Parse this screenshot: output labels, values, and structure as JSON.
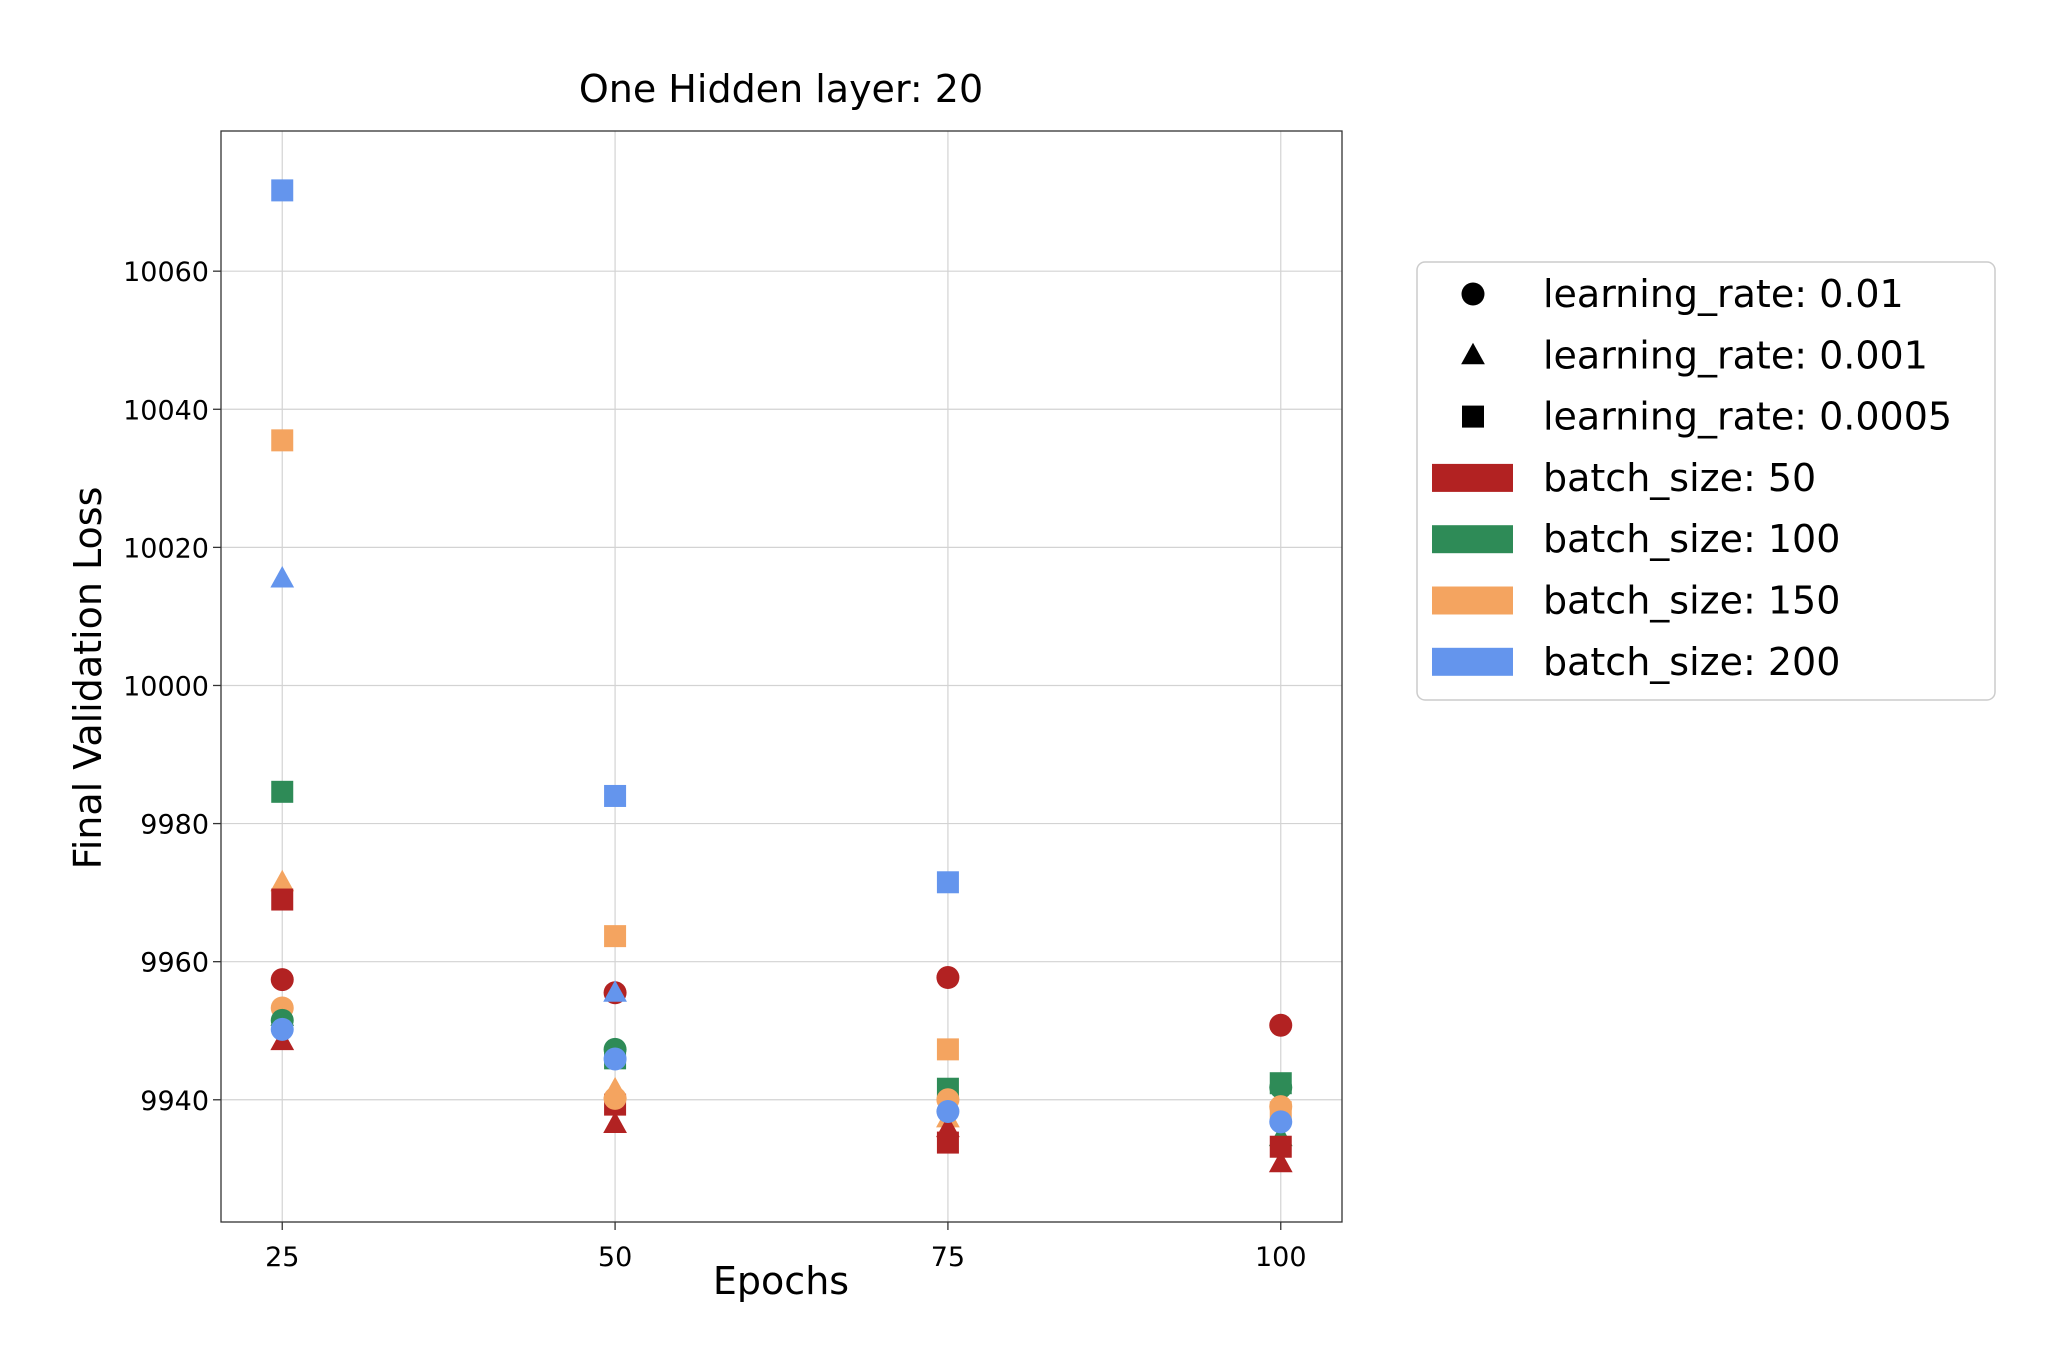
{
  "chart_data": {
    "type": "scatter",
    "title": "One Hidden layer: 20",
    "xlabel": "Epochs",
    "ylabel": "Final Validation Loss",
    "x_ticks": [
      25,
      50,
      75,
      100
    ],
    "y_ticks": [
      9940,
      9960,
      9980,
      10000,
      10020,
      10040,
      10060
    ],
    "xlim": [
      20.4,
      104.6
    ],
    "ylim": [
      9922.3,
      10080.3
    ],
    "grid": true,
    "legend_position": "outside-right",
    "colors": {
      "batch_size: 50": "#b22222",
      "batch_size: 100": "#2e8b57",
      "batch_size: 150": "#f4a460",
      "batch_size: 200": "#6495ed"
    },
    "legend": [
      {
        "label": "learning_rate: 0.01",
        "marker": "circle",
        "color": "#000000"
      },
      {
        "label": "learning_rate: 0.001",
        "marker": "triangle",
        "color": "#000000"
      },
      {
        "label": "learning_rate: 0.0005",
        "marker": "square",
        "color": "#000000"
      },
      {
        "label": "batch_size: 50",
        "marker": "patch",
        "color": "#b22222"
      },
      {
        "label": "batch_size: 100",
        "marker": "patch",
        "color": "#2e8b57"
      },
      {
        "label": "batch_size: 150",
        "marker": "patch",
        "color": "#f4a460"
      },
      {
        "label": "batch_size: 200",
        "marker": "patch",
        "color": "#6495ed"
      }
    ],
    "points": [
      {
        "x": 25,
        "y": 10071.7,
        "marker": "square",
        "batch_size": 200,
        "learning_rate": 0.0005
      },
      {
        "x": 25,
        "y": 10035.5,
        "marker": "square",
        "batch_size": 150,
        "learning_rate": 0.0005
      },
      {
        "x": 25,
        "y": 10015.5,
        "marker": "triangle",
        "batch_size": 200,
        "learning_rate": 0.001
      },
      {
        "x": 25,
        "y": 9984.6,
        "marker": "square",
        "batch_size": 100,
        "learning_rate": 0.0005
      },
      {
        "x": 25,
        "y": 9971.5,
        "marker": "triangle",
        "batch_size": 150,
        "learning_rate": 0.001
      },
      {
        "x": 25,
        "y": 9969.0,
        "marker": "square",
        "batch_size": 50,
        "learning_rate": 0.0005
      },
      {
        "x": 25,
        "y": 9957.4,
        "marker": "circle",
        "batch_size": 50,
        "learning_rate": 0.01
      },
      {
        "x": 25,
        "y": 9952.0,
        "marker": "triangle",
        "batch_size": 100,
        "learning_rate": 0.001
      },
      {
        "x": 25,
        "y": 9953.3,
        "marker": "circle",
        "batch_size": 150,
        "learning_rate": 0.01
      },
      {
        "x": 25,
        "y": 9951.5,
        "marker": "circle",
        "batch_size": 100,
        "learning_rate": 0.01
      },
      {
        "x": 25,
        "y": 9948.5,
        "marker": "triangle",
        "batch_size": 50,
        "learning_rate": 0.001
      },
      {
        "x": 25,
        "y": 9950.2,
        "marker": "circle",
        "batch_size": 200,
        "learning_rate": 0.01
      },
      {
        "x": 50,
        "y": 9984.0,
        "marker": "square",
        "batch_size": 200,
        "learning_rate": 0.0005
      },
      {
        "x": 50,
        "y": 9963.7,
        "marker": "square",
        "batch_size": 150,
        "learning_rate": 0.0005
      },
      {
        "x": 50,
        "y": 9955.5,
        "marker": "circle",
        "batch_size": 50,
        "learning_rate": 0.01
      },
      {
        "x": 50,
        "y": 9955.5,
        "marker": "triangle",
        "batch_size": 200,
        "learning_rate": 0.001
      },
      {
        "x": 50,
        "y": 9947.3,
        "marker": "circle",
        "batch_size": 100,
        "learning_rate": 0.01
      },
      {
        "x": 50,
        "y": 9946.0,
        "marker": "square",
        "batch_size": 100,
        "learning_rate": 0.0005
      },
      {
        "x": 50,
        "y": 9945.9,
        "marker": "circle",
        "batch_size": 200,
        "learning_rate": 0.01
      },
      {
        "x": 50,
        "y": 9939.3,
        "marker": "square",
        "batch_size": 50,
        "learning_rate": 0.0005
      },
      {
        "x": 50,
        "y": 9941.5,
        "marker": "triangle",
        "batch_size": 150,
        "learning_rate": 0.001
      },
      {
        "x": 50,
        "y": 9940.2,
        "marker": "circle",
        "batch_size": 150,
        "learning_rate": 0.01
      },
      {
        "x": 50,
        "y": 9936.5,
        "marker": "triangle",
        "batch_size": 50,
        "learning_rate": 0.001
      },
      {
        "x": 75,
        "y": 9971.5,
        "marker": "square",
        "batch_size": 200,
        "learning_rate": 0.0005
      },
      {
        "x": 75,
        "y": 9957.7,
        "marker": "circle",
        "batch_size": 50,
        "learning_rate": 0.01
      },
      {
        "x": 75,
        "y": 9947.3,
        "marker": "square",
        "batch_size": 150,
        "learning_rate": 0.0005
      },
      {
        "x": 75,
        "y": 9941.6,
        "marker": "square",
        "batch_size": 100,
        "learning_rate": 0.0005
      },
      {
        "x": 75,
        "y": 9940.0,
        "marker": "circle",
        "batch_size": 150,
        "learning_rate": 0.01
      },
      {
        "x": 75,
        "y": 9937.3,
        "marker": "triangle",
        "batch_size": 150,
        "learning_rate": 0.001
      },
      {
        "x": 75,
        "y": 9935.9,
        "marker": "triangle",
        "batch_size": 50,
        "learning_rate": 0.001
      },
      {
        "x": 75,
        "y": 9933.8,
        "marker": "square",
        "batch_size": 50,
        "learning_rate": 0.0005
      },
      {
        "x": 75,
        "y": 9938.3,
        "marker": "circle",
        "batch_size": 200,
        "learning_rate": 0.01
      },
      {
        "x": 100,
        "y": 9950.8,
        "marker": "circle",
        "batch_size": 50,
        "learning_rate": 0.01
      },
      {
        "x": 100,
        "y": 9942.4,
        "marker": "square",
        "batch_size": 100,
        "learning_rate": 0.0005
      },
      {
        "x": 100,
        "y": 9941.8,
        "marker": "circle",
        "batch_size": 100,
        "learning_rate": 0.01
      },
      {
        "x": 100,
        "y": 9939.0,
        "marker": "circle",
        "batch_size": 150,
        "learning_rate": 0.01
      },
      {
        "x": 100,
        "y": 9938.2,
        "marker": "square",
        "batch_size": 150,
        "learning_rate": 0.0005
      },
      {
        "x": 100,
        "y": 9934.6,
        "marker": "triangle",
        "batch_size": 100,
        "learning_rate": 0.001
      },
      {
        "x": 100,
        "y": 9936.8,
        "marker": "circle",
        "batch_size": 200,
        "learning_rate": 0.01
      },
      {
        "x": 100,
        "y": 9933.2,
        "marker": "square",
        "batch_size": 50,
        "learning_rate": 0.0005
      },
      {
        "x": 100,
        "y": 9930.8,
        "marker": "triangle",
        "batch_size": 50,
        "learning_rate": 0.001
      }
    ]
  }
}
